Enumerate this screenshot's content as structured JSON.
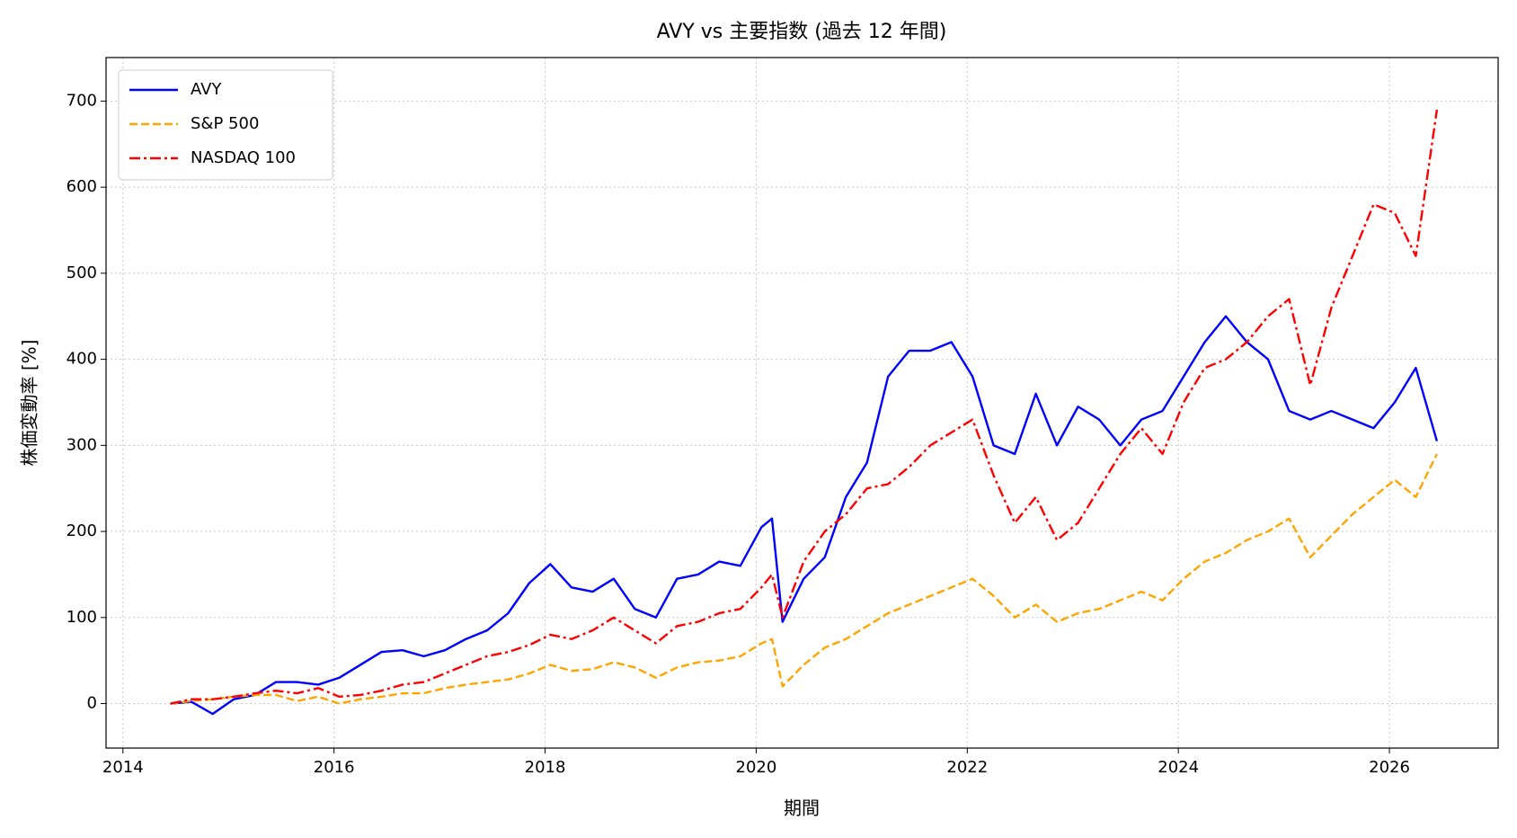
{
  "chart_data": {
    "type": "line",
    "title": "AVY vs 主要指数 (過去 12 年間)",
    "xlabel": "期間",
    "ylabel": "株価変動率 [%]",
    "x": [
      2014.45,
      2014.65,
      2014.85,
      2015.05,
      2015.25,
      2015.45,
      2015.65,
      2015.85,
      2016.05,
      2016.25,
      2016.45,
      2016.65,
      2016.85,
      2017.05,
      2017.25,
      2017.45,
      2017.65,
      2017.85,
      2018.05,
      2018.25,
      2018.45,
      2018.65,
      2018.85,
      2019.05,
      2019.25,
      2019.45,
      2019.65,
      2019.85,
      2020.05,
      2020.15,
      2020.25,
      2020.45,
      2020.65,
      2020.85,
      2021.05,
      2021.25,
      2021.45,
      2021.65,
      2021.85,
      2022.05,
      2022.25,
      2022.45,
      2022.65,
      2022.85,
      2023.05,
      2023.25,
      2023.45,
      2023.65,
      2023.85,
      2024.05,
      2024.25,
      2024.45,
      2024.65,
      2024.85,
      2025.05,
      2025.25,
      2025.45,
      2025.65,
      2025.85,
      2026.05,
      2026.25,
      2026.45
    ],
    "series": [
      {
        "name": "AVY",
        "color": "#0000ff",
        "linestyle": "solid",
        "values": [
          0,
          2,
          -12,
          5,
          10,
          25,
          25,
          22,
          30,
          45,
          60,
          62,
          55,
          62,
          75,
          85,
          105,
          140,
          162,
          135,
          130,
          145,
          110,
          100,
          145,
          150,
          165,
          160,
          205,
          215,
          95,
          145,
          170,
          240,
          280,
          380,
          410,
          410,
          420,
          380,
          300,
          290,
          360,
          300,
          345,
          330,
          300,
          330,
          340,
          380,
          420,
          450,
          420,
          400,
          340,
          330,
          340,
          330,
          320,
          350,
          390,
          305
        ]
      },
      {
        "name": "S&P 500",
        "color": "#ffa500",
        "linestyle": "dashed",
        "values": [
          0,
          3,
          5,
          8,
          10,
          10,
          3,
          8,
          0,
          5,
          8,
          12,
          12,
          18,
          22,
          25,
          28,
          35,
          45,
          38,
          40,
          48,
          42,
          30,
          42,
          48,
          50,
          55,
          70,
          75,
          20,
          45,
          65,
          75,
          90,
          105,
          115,
          125,
          135,
          145,
          125,
          100,
          115,
          95,
          105,
          110,
          120,
          130,
          120,
          145,
          165,
          175,
          190,
          200,
          215,
          170,
          195,
          220,
          240,
          260,
          240,
          290
        ]
      },
      {
        "name": "NASDAQ 100",
        "color": "#ff0000",
        "linestyle": "dashdot",
        "values": [
          0,
          5,
          5,
          8,
          12,
          15,
          12,
          18,
          8,
          10,
          15,
          22,
          25,
          35,
          45,
          55,
          60,
          68,
          80,
          75,
          85,
          100,
          85,
          70,
          90,
          95,
          105,
          110,
          135,
          150,
          100,
          165,
          200,
          220,
          250,
          255,
          275,
          300,
          315,
          330,
          265,
          210,
          240,
          190,
          210,
          250,
          290,
          320,
          290,
          350,
          390,
          400,
          420,
          450,
          470,
          370,
          460,
          520,
          580,
          570,
          520,
          690
        ]
      }
    ],
    "xlim": [
      2013.84,
      2027.03
    ],
    "xticks": [
      2014,
      2016,
      2018,
      2020,
      2022,
      2024,
      2026
    ],
    "ylim": [
      -51.7,
      750.6
    ],
    "yticks": [
      0,
      100,
      200,
      300,
      400,
      500,
      600,
      700
    ],
    "grid": true,
    "legend": "upper left"
  }
}
